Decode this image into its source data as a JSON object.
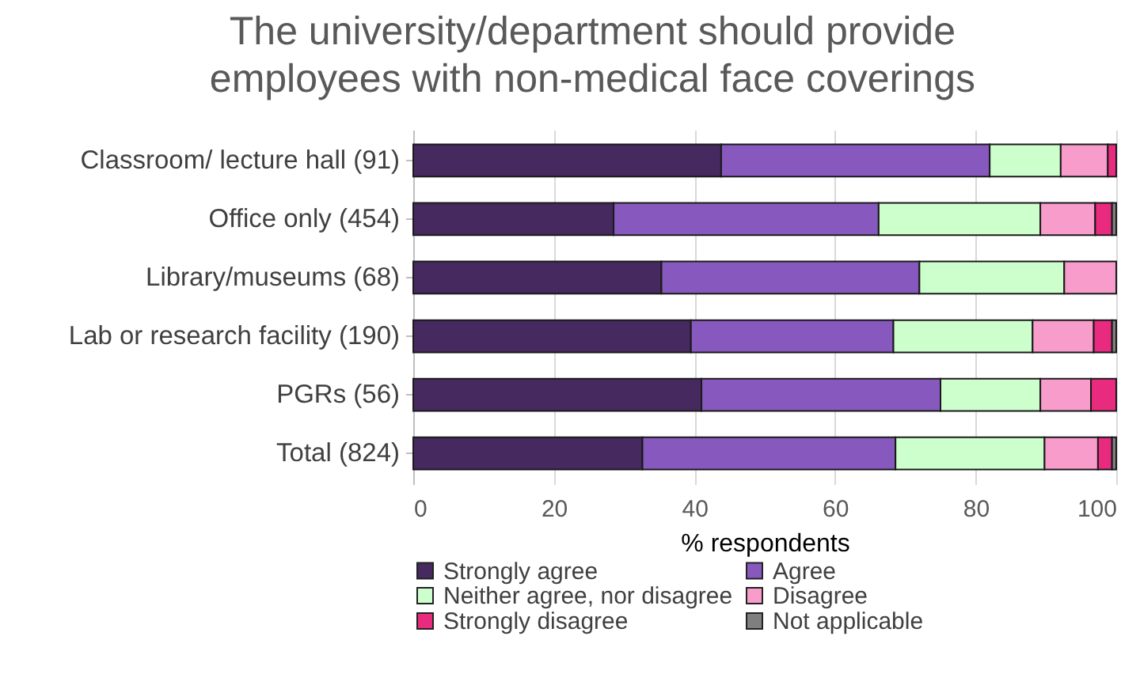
{
  "chart_data": {
    "type": "bar",
    "orientation": "horizontal",
    "stacked": true,
    "title": "The university/department should provide employees with non-medical face coverings",
    "xlabel": "% respondents",
    "categories": [
      "Classroom/ lecture hall (91)",
      "Office only (454)",
      "Library/museums (68)",
      "Lab or research facility (190)",
      "PGRs (56)",
      "Total (824)"
    ],
    "series": [
      {
        "name": "Strongly agree",
        "color": "#45295f",
        "values": [
          43.8,
          28.5,
          35.3,
          39.5,
          41.0,
          32.6
        ]
      },
      {
        "name": "Agree",
        "color": "#8759be",
        "values": [
          38.2,
          37.7,
          36.7,
          28.8,
          34.0,
          36.0
        ]
      },
      {
        "name": "Neither agree, nor disagree",
        "color": "#ccffcc",
        "values": [
          10.1,
          23.0,
          20.6,
          19.8,
          14.2,
          21.2
        ]
      },
      {
        "name": "Disagree",
        "color": "#f79ccb",
        "values": [
          6.7,
          7.8,
          7.4,
          8.7,
          7.2,
          7.6
        ]
      },
      {
        "name": "Strongly disagree",
        "color": "#e92b7f",
        "values": [
          1.2,
          2.4,
          null,
          2.6,
          3.6,
          2.0
        ]
      },
      {
        "name": "Not applicable",
        "color": "#7f7f7f",
        "values": [
          null,
          0.6,
          null,
          0.6,
          null,
          0.6
        ]
      }
    ],
    "xlim": [
      0,
      100
    ],
    "xticks": [
      0,
      20,
      40,
      60,
      80,
      100
    ],
    "grid": "x",
    "legend": "bottom"
  }
}
